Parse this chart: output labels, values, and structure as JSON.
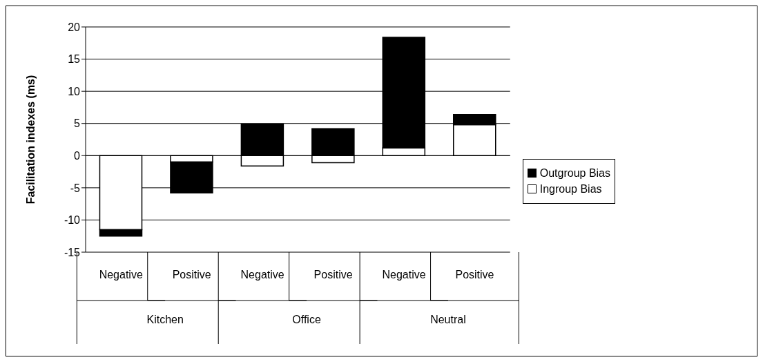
{
  "chart_data": {
    "type": "bar",
    "stacked": true,
    "ylabel": "Facilitation indexes (ms)",
    "categories": [
      "Negative",
      "Positive",
      "Negative",
      "Positive",
      "Negative",
      "Positive"
    ],
    "annotations": [
      "Kitchen",
      "Office",
      "Neutral"
    ],
    "series": [
      {
        "name": "Ingroup Bias",
        "color": "#ffffff",
        "values": [
          -11.5,
          -1.0,
          -1.6,
          -1.1,
          1.2,
          4.8
        ]
      },
      {
        "name": "Outgroup Bias",
        "color": "#000000",
        "values": [
          -1.0,
          -4.8,
          4.9,
          4.2,
          17.2,
          1.6
        ]
      }
    ],
    "ylim": [
      -15,
      20
    ],
    "yticks": [
      -15,
      -10,
      -5,
      0,
      5,
      10,
      15,
      20
    ],
    "grid": "y",
    "legend": "right"
  }
}
